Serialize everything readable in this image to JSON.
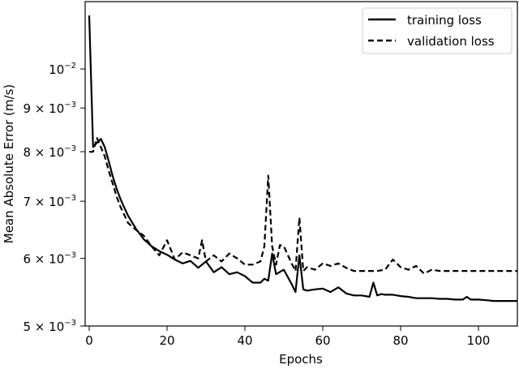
{
  "chart_data": {
    "type": "line",
    "title": "",
    "xlabel": "Epochs",
    "ylabel": "Mean Absolute Error (m/s)",
    "yscale": "log",
    "xlim": [
      -1,
      110
    ],
    "ylim": [
      0.005,
      0.0119
    ],
    "x_ticks": [
      0,
      20,
      40,
      60,
      80,
      100
    ],
    "y_ticks": [
      {
        "value": 0.01,
        "mantissa": "",
        "exp": "−2"
      },
      {
        "value": 0.009,
        "mantissa": "9",
        "exp": "−3"
      },
      {
        "value": 0.008,
        "mantissa": "8",
        "exp": "−3"
      },
      {
        "value": 0.007,
        "mantissa": "7",
        "exp": "−3"
      },
      {
        "value": 0.006,
        "mantissa": "6",
        "exp": "−3"
      },
      {
        "value": 0.005,
        "mantissa": "5",
        "exp": "−3"
      }
    ],
    "grid": false,
    "legend_position": "upper right",
    "series": [
      {
        "name": "training loss",
        "style": "solid",
        "color": "#000000",
        "x": [
          0,
          1,
          2,
          3,
          4,
          5,
          6,
          7,
          8,
          9,
          10,
          12,
          14,
          16,
          18,
          20,
          22,
          24,
          26,
          28,
          30,
          32,
          34,
          36,
          38,
          40,
          42,
          44,
          45,
          46,
          47,
          48,
          50,
          52,
          53,
          54,
          55,
          56,
          58,
          60,
          62,
          64,
          66,
          68,
          70,
          72,
          73,
          74,
          75,
          76,
          78,
          80,
          82,
          84,
          86,
          88,
          90,
          92,
          94,
          96,
          97,
          98,
          99,
          100,
          102,
          104,
          106,
          108,
          110
        ],
        "values": [
          0.01155,
          0.0081,
          0.0082,
          0.00828,
          0.0081,
          0.0078,
          0.0075,
          0.00725,
          0.00705,
          0.00688,
          0.00673,
          0.0065,
          0.00632,
          0.0062,
          0.00612,
          0.00606,
          0.00598,
          0.00592,
          0.00596,
          0.00585,
          0.00595,
          0.00578,
          0.00586,
          0.00575,
          0.00578,
          0.00572,
          0.00562,
          0.00562,
          0.00568,
          0.00565,
          0.00608,
          0.00575,
          0.00582,
          0.0056,
          0.00548,
          0.00605,
          0.00552,
          0.0055,
          0.00552,
          0.00553,
          0.00548,
          0.00555,
          0.00546,
          0.00543,
          0.00543,
          0.00541,
          0.00562,
          0.00543,
          0.00545,
          0.00544,
          0.00544,
          0.00542,
          0.00541,
          0.00539,
          0.00539,
          0.00539,
          0.00538,
          0.00538,
          0.00537,
          0.00537,
          0.00541,
          0.00537,
          0.00537,
          0.00537,
          0.00536,
          0.00535,
          0.00535,
          0.00535,
          0.00535
        ]
      },
      {
        "name": "validation loss",
        "style": "dashed",
        "color": "#000000",
        "x": [
          0,
          1,
          2,
          3,
          4,
          5,
          6,
          7,
          8,
          9,
          10,
          12,
          14,
          16,
          18,
          20,
          22,
          24,
          26,
          28,
          29,
          30,
          32,
          34,
          36,
          38,
          40,
          42,
          44,
          45,
          46,
          47,
          48,
          49,
          50,
          52,
          53,
          54,
          55,
          56,
          58,
          60,
          62,
          64,
          66,
          68,
          70,
          72,
          74,
          76,
          78,
          80,
          82,
          84,
          86,
          88,
          90,
          92,
          94,
          96,
          98,
          100,
          102,
          104,
          106,
          108,
          110
        ],
        "values": [
          0.008,
          0.008,
          0.0083,
          0.0081,
          0.0079,
          0.0076,
          0.00735,
          0.0071,
          0.0069,
          0.00675,
          0.0066,
          0.00648,
          0.00638,
          0.0062,
          0.00605,
          0.0063,
          0.00598,
          0.0061,
          0.00605,
          0.006,
          0.0063,
          0.00595,
          0.00605,
          0.00595,
          0.00608,
          0.006,
          0.0059,
          0.0059,
          0.00595,
          0.0062,
          0.0075,
          0.0062,
          0.0059,
          0.00622,
          0.0062,
          0.00592,
          0.0058,
          0.0067,
          0.0058,
          0.00586,
          0.00582,
          0.00592,
          0.00588,
          0.00592,
          0.00585,
          0.0058,
          0.0058,
          0.0058,
          0.0058,
          0.00582,
          0.00598,
          0.00586,
          0.00582,
          0.00588,
          0.00576,
          0.00582,
          0.0058,
          0.0058,
          0.0058,
          0.0058,
          0.0058,
          0.0058,
          0.0058,
          0.0058,
          0.0058,
          0.0058,
          0.0058
        ]
      }
    ]
  },
  "legend": {
    "items": [
      {
        "label": "training loss"
      },
      {
        "label": "validation loss"
      }
    ]
  },
  "axes": {
    "xlabel": "Epochs",
    "ylabel": "Mean Absolute Error (m/s)"
  }
}
